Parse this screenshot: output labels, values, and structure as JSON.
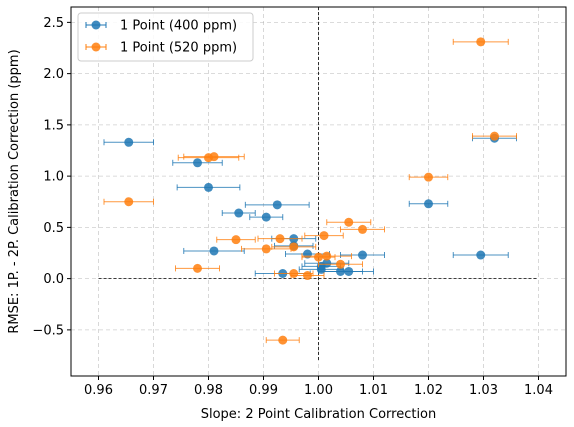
{
  "chart_data": {
    "type": "scatter",
    "title": "",
    "xlabel": "Slope: 2 Point Calibration Correction",
    "ylabel": "RMSE: 1P. - 2P. Calibration Correction (ppm)",
    "xlim": [
      0.955,
      1.045
    ],
    "ylim": [
      -0.95,
      2.65
    ],
    "xticks": [
      0.96,
      0.97,
      0.98,
      0.99,
      1.0,
      1.01,
      1.02,
      1.03,
      1.04
    ],
    "xtick_labels": [
      "0.96",
      "0.97",
      "0.98",
      "0.99",
      "1.00",
      "1.01",
      "1.02",
      "1.03",
      "1.04"
    ],
    "yticks": [
      -0.5,
      0.0,
      0.5,
      1.0,
      1.5,
      2.0,
      2.5
    ],
    "ytick_labels": [
      "−0.5",
      "0.0",
      "0.5",
      "1.0",
      "1.5",
      "2.0",
      "2.5"
    ],
    "grid": true,
    "legend_position": "top-left",
    "reference_lines": {
      "x": 1.0,
      "y": 0.0
    },
    "series": [
      {
        "name": "1 Point (400 ppm)",
        "color": "#1f77b4",
        "points": [
          {
            "x": 0.9655,
            "y": 1.33,
            "xerr": 0.0045
          },
          {
            "x": 0.978,
            "y": 1.13,
            "xerr": 0.0045
          },
          {
            "x": 0.98,
            "y": 0.89,
            "xerr": 0.0057
          },
          {
            "x": 0.9855,
            "y": 0.64,
            "xerr": 0.003
          },
          {
            "x": 0.9925,
            "y": 0.72,
            "xerr": 0.0058
          },
          {
            "x": 0.9905,
            "y": 0.6,
            "xerr": 0.003
          },
          {
            "x": 0.981,
            "y": 0.27,
            "xerr": 0.0055
          },
          {
            "x": 0.9955,
            "y": 0.39,
            "xerr": 0.004
          },
          {
            "x": 0.9955,
            "y": 0.32,
            "xerr": 0.0035
          },
          {
            "x": 0.998,
            "y": 0.24,
            "xerr": 0.004
          },
          {
            "x": 1.008,
            "y": 0.23,
            "xerr": 0.004
          },
          {
            "x": 1.0015,
            "y": 0.15,
            "xerr": 0.004
          },
          {
            "x": 1.0005,
            "y": 0.12,
            "xerr": 0.0035
          },
          {
            "x": 1.0005,
            "y": 0.09,
            "xerr": 0.004
          },
          {
            "x": 1.004,
            "y": 0.07,
            "xerr": 0.004
          },
          {
            "x": 1.0055,
            "y": 0.07,
            "xerr": 0.0045
          },
          {
            "x": 0.9935,
            "y": 0.05,
            "xerr": 0.005
          },
          {
            "x": 1.02,
            "y": 0.73,
            "xerr": 0.0035
          },
          {
            "x": 1.032,
            "y": 1.37,
            "xerr": 0.004
          },
          {
            "x": 1.0295,
            "y": 0.23,
            "xerr": 0.005
          }
        ]
      },
      {
        "name": "1 Point (520 ppm)",
        "color": "#ff7f0e",
        "points": [
          {
            "x": 0.9655,
            "y": 0.75,
            "xerr": 0.0045
          },
          {
            "x": 0.98,
            "y": 1.18,
            "xerr": 0.0055
          },
          {
            "x": 0.981,
            "y": 1.19,
            "xerr": 0.0055
          },
          {
            "x": 0.978,
            "y": 0.1,
            "xerr": 0.004
          },
          {
            "x": 0.985,
            "y": 0.38,
            "xerr": 0.0035
          },
          {
            "x": 0.9905,
            "y": 0.29,
            "xerr": 0.0045
          },
          {
            "x": 0.993,
            "y": 0.39,
            "xerr": 0.004
          },
          {
            "x": 0.9955,
            "y": 0.31,
            "xerr": 0.004
          },
          {
            "x": 0.9955,
            "y": 0.05,
            "xerr": 0.0035
          },
          {
            "x": 0.998,
            "y": 0.03,
            "xerr": 0.003
          },
          {
            "x": 1.0,
            "y": 0.21,
            "xerr": 0.003
          },
          {
            "x": 1.001,
            "y": 0.42,
            "xerr": 0.0035
          },
          {
            "x": 1.0015,
            "y": 0.22,
            "xerr": 0.0045
          },
          {
            "x": 1.004,
            "y": 0.14,
            "xerr": 0.004
          },
          {
            "x": 1.0055,
            "y": 0.55,
            "xerr": 0.004
          },
          {
            "x": 1.008,
            "y": 0.48,
            "xerr": 0.004
          },
          {
            "x": 0.9935,
            "y": -0.6,
            "xerr": 0.003
          },
          {
            "x": 1.02,
            "y": 0.99,
            "xerr": 0.0035
          },
          {
            "x": 1.0295,
            "y": 2.31,
            "xerr": 0.005
          },
          {
            "x": 1.032,
            "y": 1.39,
            "xerr": 0.004
          }
        ]
      }
    ]
  }
}
